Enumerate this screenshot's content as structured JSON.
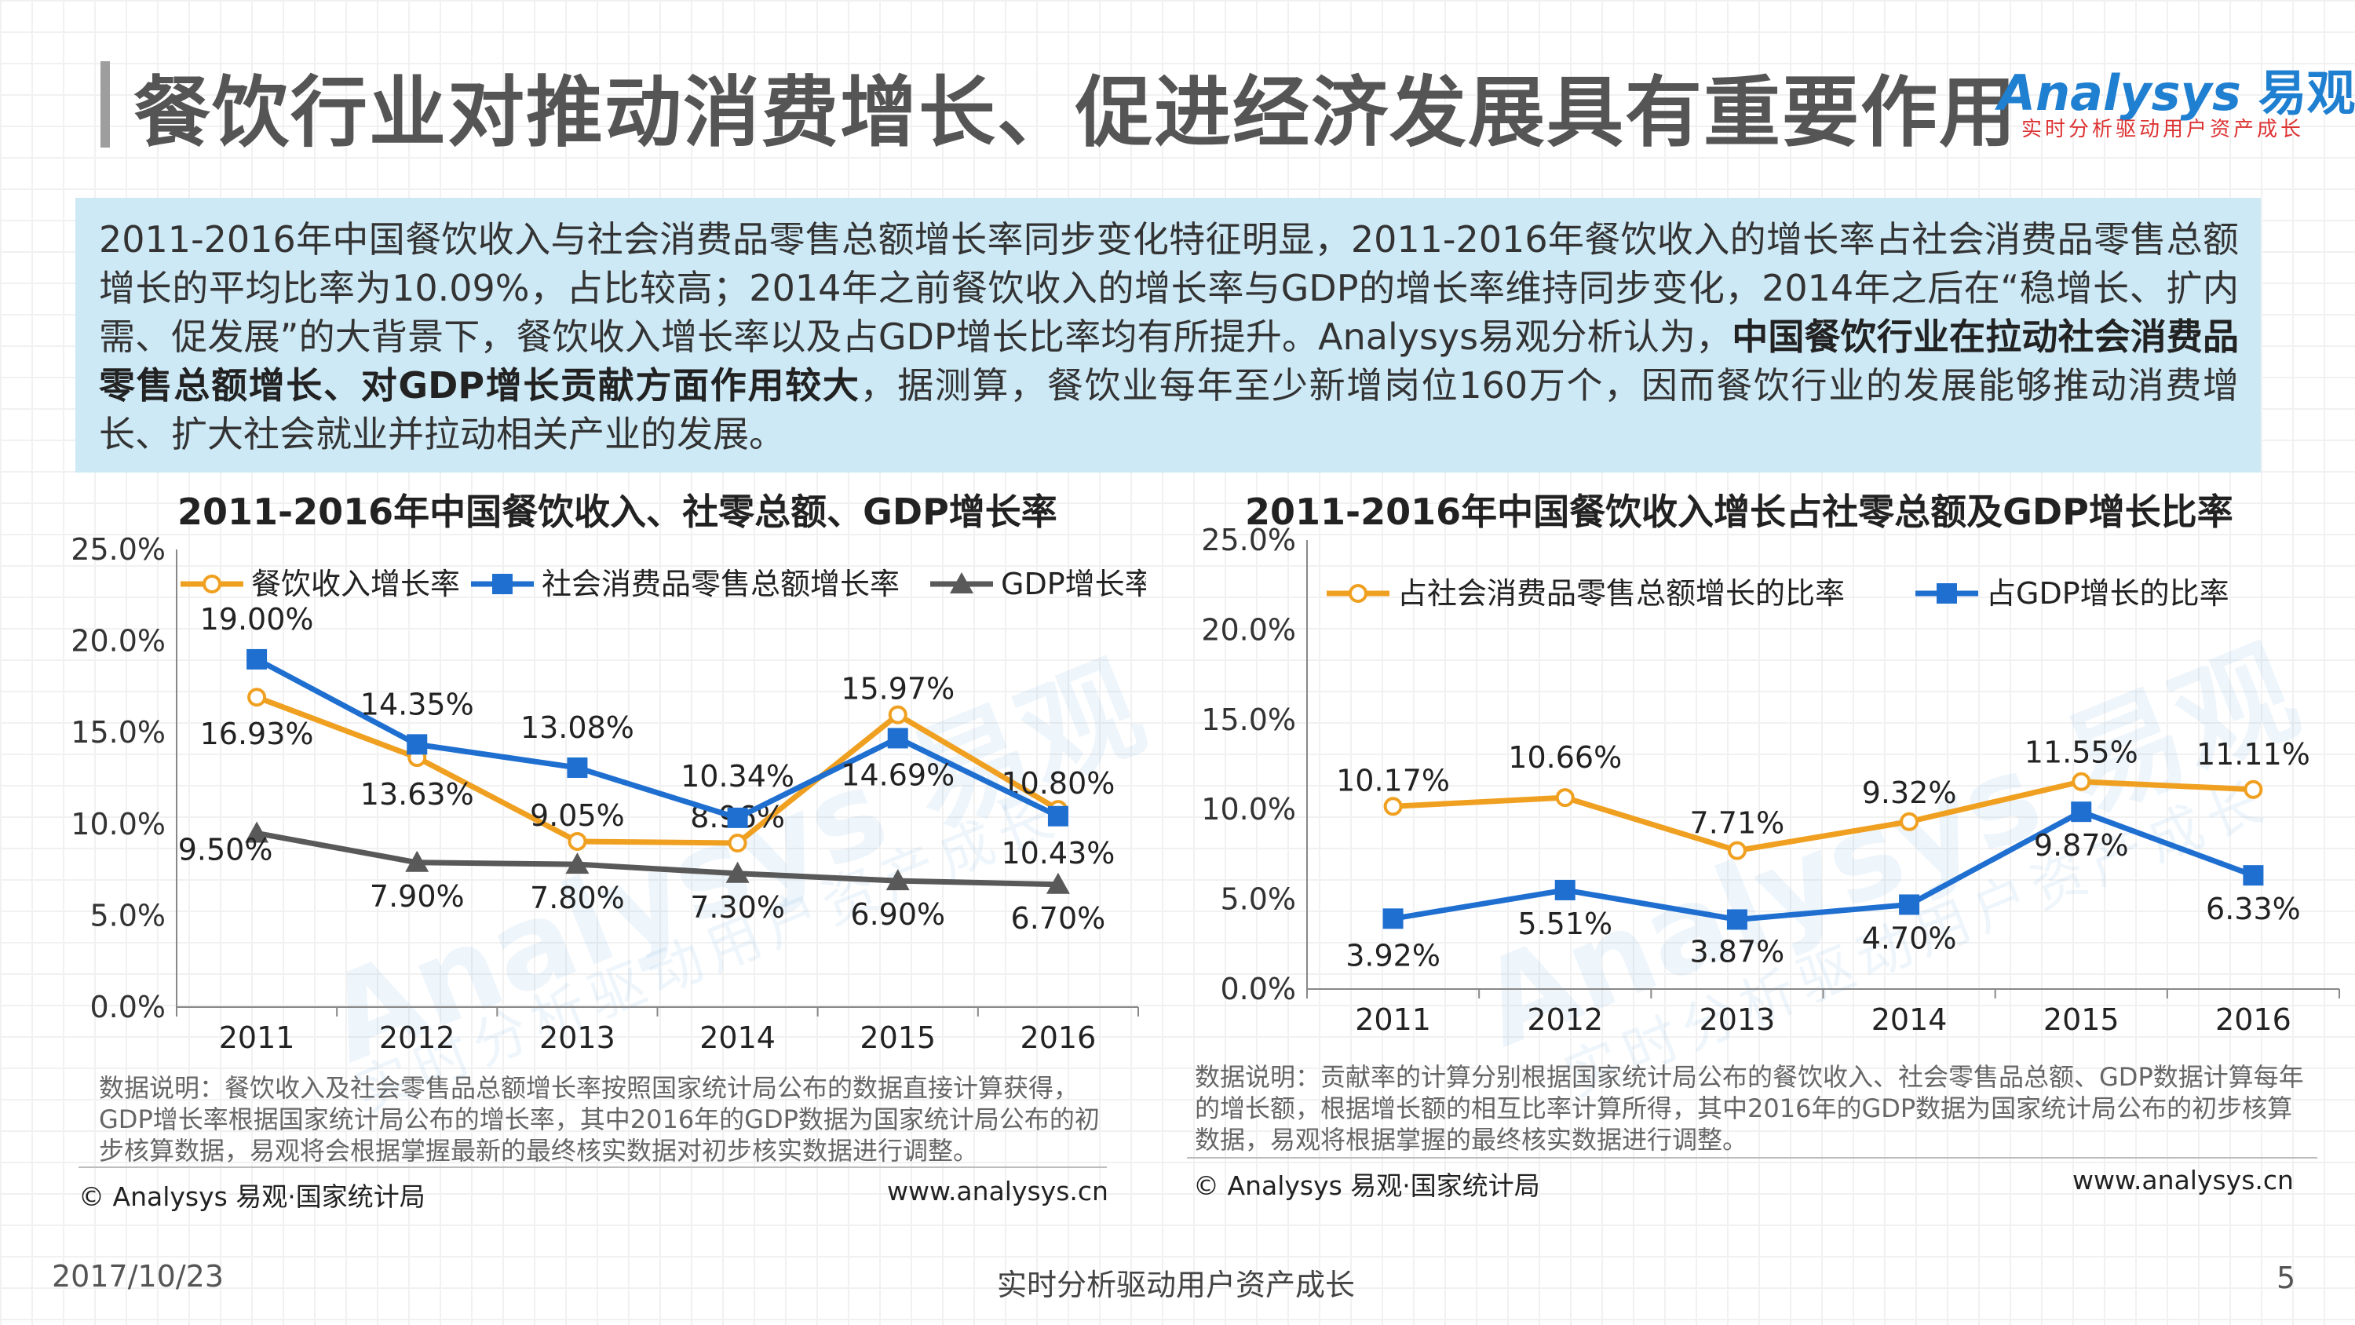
{
  "header": {
    "title": "餐饮行业对推动消费增长、促进经济发展具有重要作用",
    "logo_main": "Analysys",
    "logo_cn": "易观",
    "logo_sub": "实时分析驱动用户资产成长"
  },
  "summary": {
    "text_before": "2011-2016年中国餐饮收入与社会消费品零售总额增长率同步变化特征明显，2011-2016年餐饮收入的增长率占社会消费品零售总额增长的平均比率为10.09%，占比较高；2014年之前餐饮收入的增长率与GDP的增长率维持同步变化，2014年之后在“稳增长、扩内需、促发展”的大背景下，餐饮收入增长率以及占GDP增长比率均有所提升。Analysys易观分析认为，",
    "text_bold": "中国餐饮行业在拉动社会消费品零售总额增长、对GDP增长贡献方面作用较大",
    "text_after": "，据测算，餐饮业每年至少新增岗位160万个，因而餐饮行业的发展能够推动消费增长、扩大社会就业并拉动相关产业的发展。"
  },
  "left": {
    "note": "数据说明：餐饮收入及社会零售品总额增长率按照国家统计局公布的数据直接计算获得，GDP增长率根据国家统计局公布的增长率，其中2016年的GDP数据为国家统计局公布的初步核算数据，易观将会根据掌握最新的最终核实数据对初步核实数据进行调整。",
    "source": "© Analysys 易观·国家统计局",
    "url": "www.analysys.cn"
  },
  "right": {
    "note": "数据说明：贡献率的计算分别根据国家统计局公布的餐饮收入、社会零售品总额、GDP数据计算每年的增长额，根据增长额的相互比率计算所得，其中2016年的GDP数据为国家统计局公布的初步核算数据，易观将根据掌握的最终核实数据进行调整。",
    "source": "© Analysys 易观·国家统计局",
    "url": "www.analysys.cn"
  },
  "footer": {
    "date": "2017/10/23",
    "slogan": "实时分析驱动用户资产成长",
    "page": "5"
  },
  "watermark": {
    "main": "Analysys 易观",
    "sub": "实时分析驱动用户资产成长"
  },
  "colors": {
    "orange": "#f0a020",
    "blue": "#1f6fd1",
    "gray": "#595959",
    "summary_bg": "#cde9f6"
  },
  "chart_data": [
    {
      "type": "line",
      "title": "2011-2016年中国餐饮收入、社零总额、GDP增长率",
      "categories": [
        "2011",
        "2012",
        "2013",
        "2014",
        "2015",
        "2016"
      ],
      "ylim": [
        0,
        25
      ],
      "yticks": [
        "0.0%",
        "5.0%",
        "10.0%",
        "15.0%",
        "20.0%",
        "25.0%"
      ],
      "legend_position": "top",
      "series": [
        {
          "name": "餐饮收入增长率",
          "values": [
            16.93,
            13.63,
            9.05,
            8.96,
            15.97,
            10.8
          ],
          "labels": [
            "16.93%",
            "13.63%",
            "9.05%",
            "8.96%",
            "15.97%",
            "10.80%"
          ],
          "marker": "circle",
          "color": "#f0a020"
        },
        {
          "name": "社会消费品零售总额增长率",
          "values": [
            19.0,
            14.35,
            13.08,
            10.34,
            14.69,
            10.43
          ],
          "labels": [
            "19.00%",
            "14.35%",
            "13.08%",
            "10.34%",
            "14.69%",
            "10.43%"
          ],
          "marker": "square",
          "color": "#1f6fd1"
        },
        {
          "name": "GDP增长率",
          "values": [
            9.5,
            7.9,
            7.8,
            7.3,
            6.9,
            6.7
          ],
          "labels": [
            "9.50%",
            "7.90%",
            "7.80%",
            "7.30%",
            "6.90%",
            "6.70%"
          ],
          "marker": "triangle",
          "color": "#595959"
        }
      ]
    },
    {
      "type": "line",
      "title": "2011-2016年中国餐饮收入增长占社零总额及GDP增长比率",
      "categories": [
        "2011",
        "2012",
        "2013",
        "2014",
        "2015",
        "2016"
      ],
      "ylim": [
        0,
        25
      ],
      "yticks": [
        "0.0%",
        "5.0%",
        "10.0%",
        "15.0%",
        "20.0%",
        "25.0%"
      ],
      "legend_position": "top",
      "series": [
        {
          "name": "占社会消费品零售总额增长的比率",
          "values": [
            10.17,
            10.66,
            7.71,
            9.32,
            11.55,
            11.11
          ],
          "labels": [
            "10.17%",
            "10.66%",
            "7.71%",
            "9.32%",
            "11.55%",
            "11.11%"
          ],
          "marker": "circle",
          "color": "#f0a020"
        },
        {
          "name": "占GDP增长的比率",
          "values": [
            3.92,
            5.51,
            3.87,
            4.7,
            9.87,
            6.33
          ],
          "labels": [
            "3.92%",
            "5.51%",
            "3.87%",
            "4.70%",
            "9.87%",
            "6.33%"
          ],
          "marker": "square",
          "color": "#1f6fd1"
        }
      ]
    }
  ]
}
